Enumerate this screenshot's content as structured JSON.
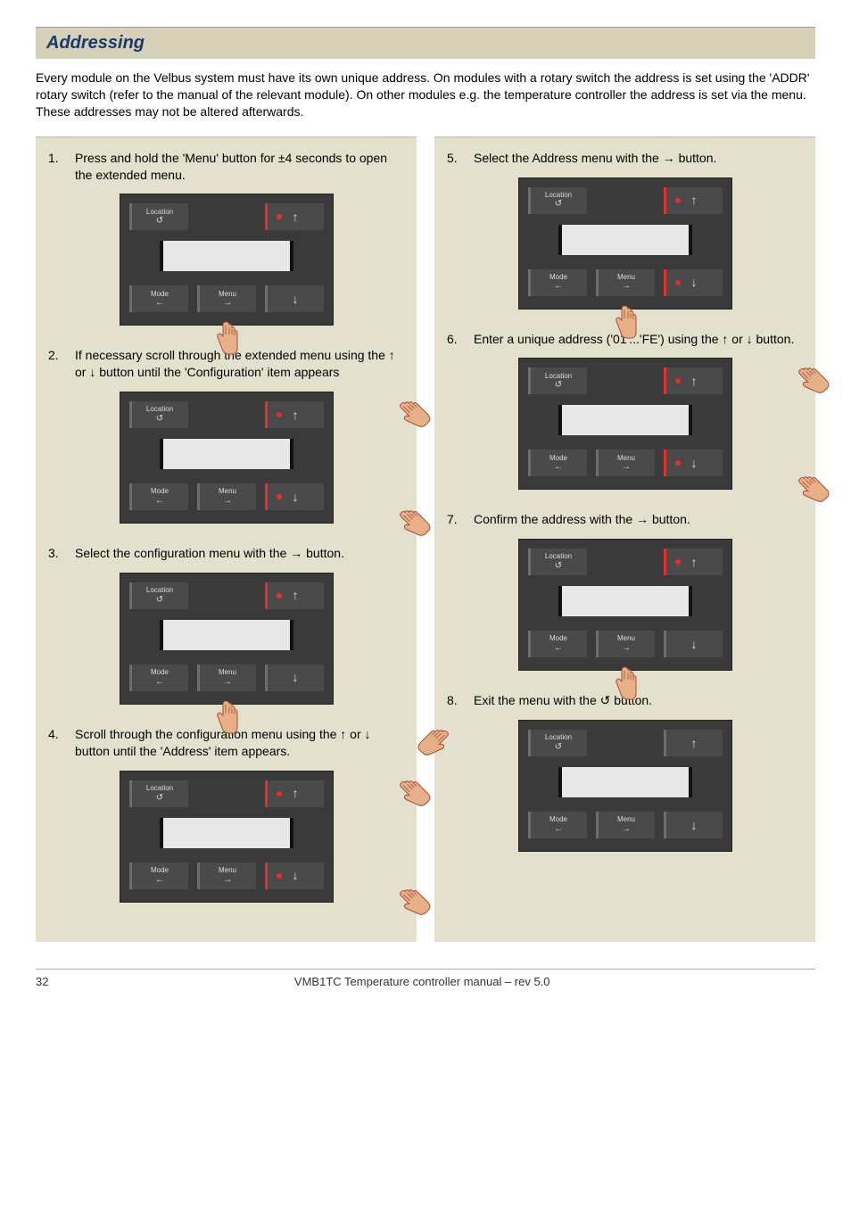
{
  "heading": "Addressing",
  "intro": "Every module on the Velbus system must have its own unique address. On modules with a rotary switch the address is set using the 'ADDR' rotary switch (refer to the manual of the relevant module). On other modules e.g. the temperature controller the address is set via the menu. These addresses may not be altered afterwards.",
  "device": {
    "location_label": "Location",
    "location_sub": "↺",
    "mode_label": "Mode",
    "mode_sub": "←",
    "menu_label": "Menu",
    "menu_sub": "→",
    "up_arrow": "↑",
    "down_arrow": "↓"
  },
  "left_steps": [
    {
      "n": "1.",
      "text": "Press and hold the 'Menu' button for ±4 seconds to open the extended menu.",
      "hl_up": true,
      "hl_down": false,
      "finger": "below-menu"
    },
    {
      "n": "2.",
      "text": "If necessary scroll through the extended menu using the ↑ or ↓ button until the 'Configuration' item appears",
      "hl_up": true,
      "hl_down": true,
      "finger": "right-both"
    },
    {
      "n": "3.",
      "text": "Select the configuration menu with the → button.",
      "hl_up": true,
      "hl_down": false,
      "finger": "below-menu"
    },
    {
      "n": "4.",
      "text": "Scroll through the configuration menu using the ↑ or ↓ button until the 'Address' item appears.",
      "hl_up": true,
      "hl_down": true,
      "finger": "right-both"
    }
  ],
  "right_steps": [
    {
      "n": "5.",
      "text": "Select the Address menu with the → button.",
      "hl_up": true,
      "hl_down": true,
      "finger": "below-menu"
    },
    {
      "n": "6.",
      "text": "Enter a unique address ('01'...'FE') using the ↑ or ↓ button.",
      "hl_up": true,
      "hl_down": true,
      "finger": "right-both"
    },
    {
      "n": "7.",
      "text": "Confirm the address with the → button.",
      "hl_up": true,
      "hl_down": false,
      "finger": "below-menu"
    },
    {
      "n": "8.",
      "text": "Exit the menu with the ↺ button.",
      "hl_up": false,
      "hl_down": false,
      "finger": "left"
    }
  ],
  "footer": {
    "page": "32",
    "title": "VMB1TC Temperature controller manual – rev 5.0"
  },
  "colors": {
    "heading_bg": "#d6d0b8",
    "heading_text": "#1a3a6e",
    "panel_bg": "#e4e0ce",
    "device_bg": "#3a3a3a",
    "button_bg": "#4a4a4a",
    "accent_red": "#e03030",
    "text": "#000000",
    "screen_bg": "#e8e8e8",
    "hand_fill": "#e8b088",
    "hand_stroke": "#a05030"
  }
}
